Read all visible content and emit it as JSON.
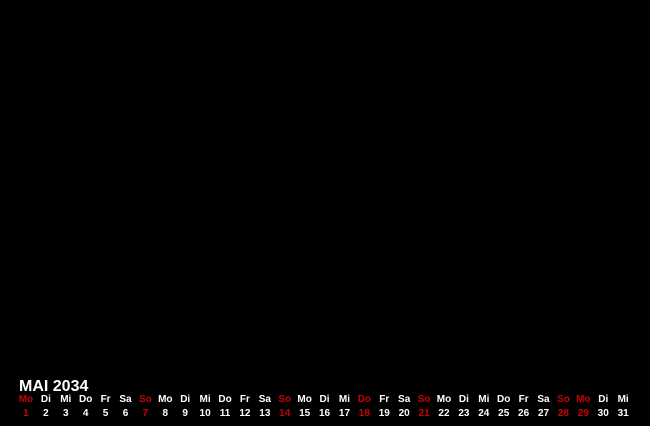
{
  "background_color": "#000000",
  "calendar": {
    "title": "MAI 2034",
    "colors": {
      "text": "#ffffff",
      "highlight": "#cc0000",
      "background": "#000000"
    },
    "days": [
      {
        "weekday": "Mo",
        "date": "1",
        "highlight": true
      },
      {
        "weekday": "Di",
        "date": "2",
        "highlight": false
      },
      {
        "weekday": "Mi",
        "date": "3",
        "highlight": false
      },
      {
        "weekday": "Do",
        "date": "4",
        "highlight": false
      },
      {
        "weekday": "Fr",
        "date": "5",
        "highlight": false
      },
      {
        "weekday": "Sa",
        "date": "6",
        "highlight": false
      },
      {
        "weekday": "So",
        "date": "7",
        "highlight": true
      },
      {
        "weekday": "Mo",
        "date": "8",
        "highlight": false
      },
      {
        "weekday": "Di",
        "date": "9",
        "highlight": false
      },
      {
        "weekday": "Mi",
        "date": "10",
        "highlight": false
      },
      {
        "weekday": "Do",
        "date": "11",
        "highlight": false
      },
      {
        "weekday": "Fr",
        "date": "12",
        "highlight": false
      },
      {
        "weekday": "Sa",
        "date": "13",
        "highlight": false
      },
      {
        "weekday": "So",
        "date": "14",
        "highlight": true
      },
      {
        "weekday": "Mo",
        "date": "15",
        "highlight": false
      },
      {
        "weekday": "Di",
        "date": "16",
        "highlight": false
      },
      {
        "weekday": "Mi",
        "date": "17",
        "highlight": false
      },
      {
        "weekday": "Do",
        "date": "18",
        "highlight": true
      },
      {
        "weekday": "Fr",
        "date": "19",
        "highlight": false
      },
      {
        "weekday": "Sa",
        "date": "20",
        "highlight": false
      },
      {
        "weekday": "So",
        "date": "21",
        "highlight": true
      },
      {
        "weekday": "Mo",
        "date": "22",
        "highlight": false
      },
      {
        "weekday": "Di",
        "date": "23",
        "highlight": false
      },
      {
        "weekday": "Mi",
        "date": "24",
        "highlight": false
      },
      {
        "weekday": "Do",
        "date": "25",
        "highlight": false
      },
      {
        "weekday": "Fr",
        "date": "26",
        "highlight": false
      },
      {
        "weekday": "Sa",
        "date": "27",
        "highlight": false
      },
      {
        "weekday": "So",
        "date": "28",
        "highlight": true
      },
      {
        "weekday": "Mo",
        "date": "29",
        "highlight": true
      },
      {
        "weekday": "Di",
        "date": "30",
        "highlight": false
      },
      {
        "weekday": "Mi",
        "date": "31",
        "highlight": false
      }
    ]
  }
}
